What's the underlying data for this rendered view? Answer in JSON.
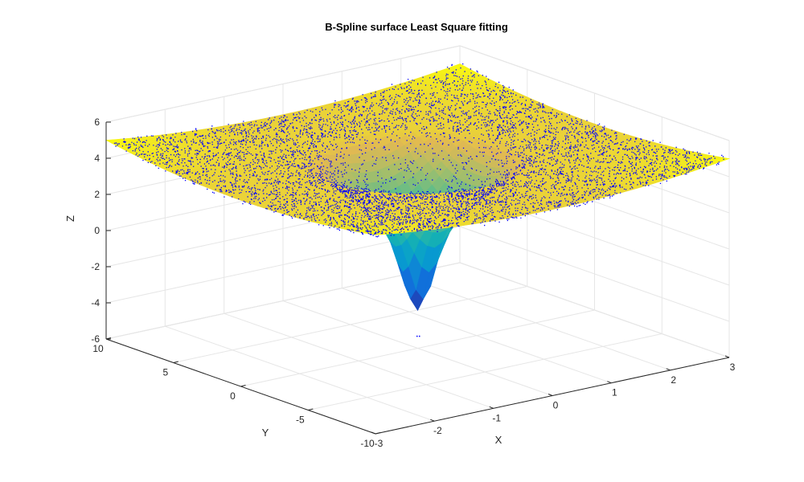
{
  "chart_data": {
    "type": "surface",
    "title": "B-Spline surface Least Square fitting",
    "xlabel": "X",
    "ylabel": "Y",
    "zlabel": "Z",
    "xlim": [
      -3,
      3
    ],
    "ylim": [
      -10,
      10
    ],
    "zlim": [
      -6,
      6
    ],
    "x_ticks": [
      -3,
      -2,
      -1,
      0,
      1,
      2,
      3
    ],
    "y_ticks": [
      -10,
      -5,
      0,
      5,
      10
    ],
    "z_ticks": [
      -6,
      -4,
      -2,
      0,
      2,
      4,
      6
    ],
    "x_tick_labels": [
      "-3",
      "-2",
      "-1",
      "0",
      "1",
      "2",
      "3"
    ],
    "y_tick_labels": [
      "-10",
      "-5",
      "0",
      "5",
      "10"
    ],
    "z_tick_labels": [
      "-6",
      "-4",
      "-2",
      "0",
      "2",
      "4",
      "6"
    ],
    "grid": true,
    "surface_colormap": "parula",
    "scatter_color": "#0000ff",
    "surface": {
      "description_values": {
        "corner_height": 5,
        "plateau_height": 4.3,
        "rim_height": 0.2,
        "well_minimum": -3.9,
        "well_center": [
          0,
          0
        ]
      }
    }
  }
}
